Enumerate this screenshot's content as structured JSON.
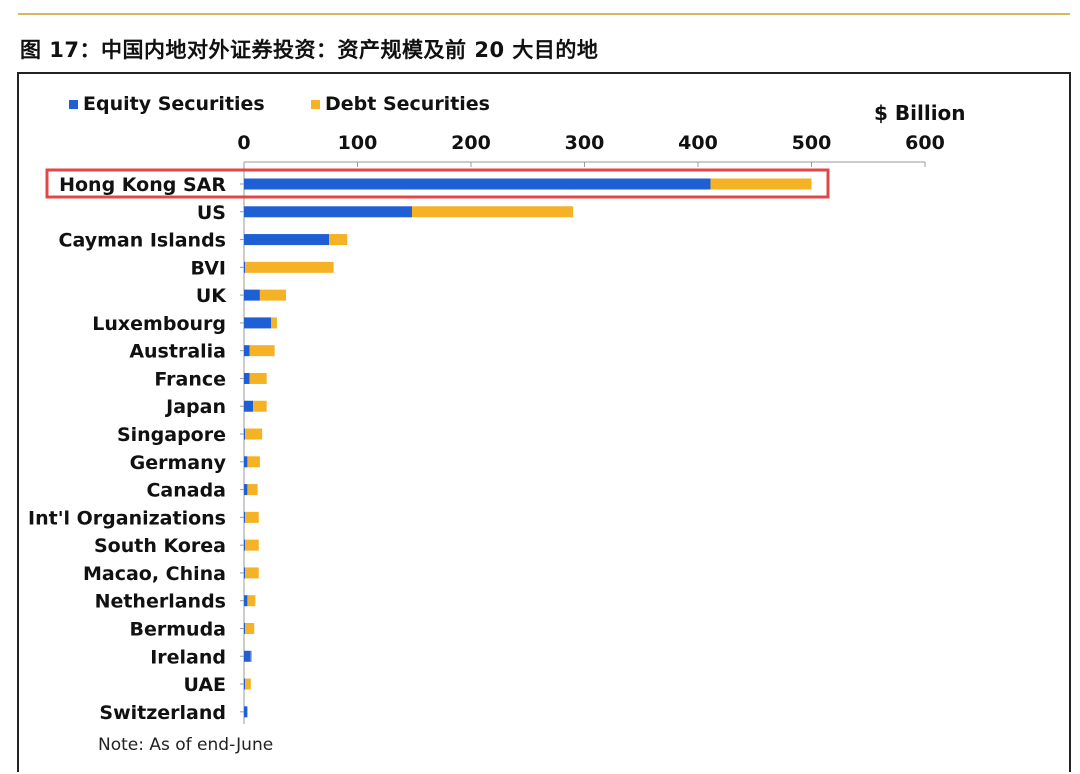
{
  "title": "图 17：中国内地对外证券投资：资产规模及前 20 大目的地",
  "note": "Note: As of end-June",
  "colors": {
    "equity": "#1f5fd6",
    "debt": "#f4b224",
    "highlight": "#e04848",
    "title_rule": "#d9b75a"
  },
  "chart_data": {
    "type": "bar",
    "orientation": "horizontal",
    "stacked": true,
    "unit_label": "$ Billion",
    "xlim": [
      0,
      600
    ],
    "x_ticks": [
      "0",
      "100",
      "200",
      "300",
      "400",
      "500",
      "600"
    ],
    "x_axis_position": "top",
    "legend_position": "top-left",
    "grid": false,
    "highlighted_category": "Hong Kong SAR",
    "categories": [
      "Hong Kong SAR",
      "US",
      "Cayman Islands",
      "BVI",
      "UK",
      "Luxembourg",
      "Australia",
      "France",
      "Japan",
      "Singapore",
      "Germany",
      "Canada",
      "Int'l Organizations",
      "South Korea",
      "Macao, China",
      "Netherlands",
      "Bermuda",
      "Ireland",
      "UAE",
      "Switzerland"
    ],
    "series": [
      {
        "name": "Equity Securities",
        "values": [
          411,
          148,
          75,
          1,
          14,
          24,
          5,
          5,
          8,
          1,
          3,
          3,
          1,
          1,
          1,
          3,
          1,
          6,
          1,
          3
        ]
      },
      {
        "name": "Debt Securities",
        "values": [
          89,
          142,
          16,
          78,
          23,
          5,
          22,
          15,
          12,
          15,
          11,
          9,
          12,
          12,
          12,
          7,
          8,
          1,
          5,
          0
        ]
      }
    ]
  }
}
